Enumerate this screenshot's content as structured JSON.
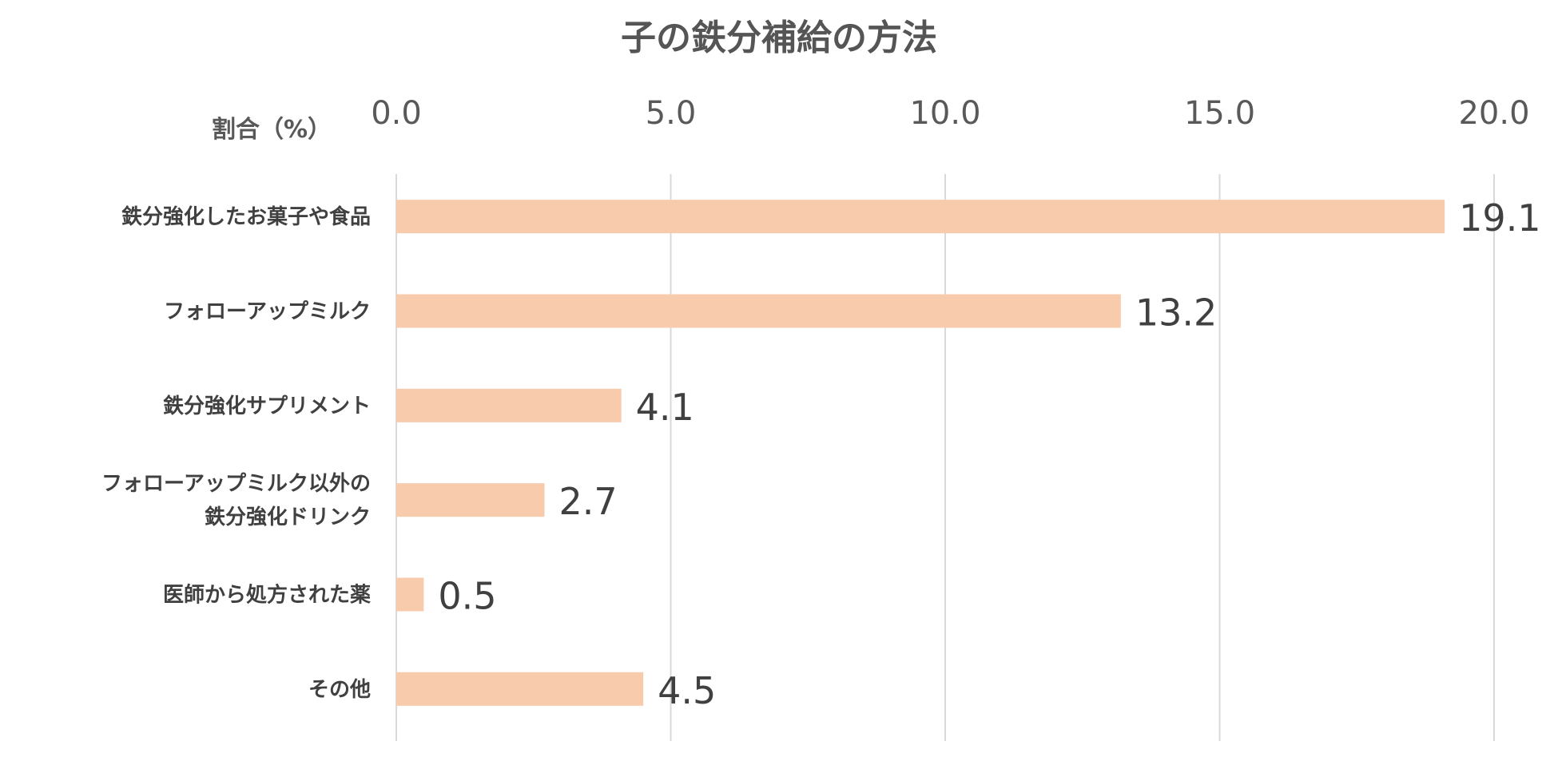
{
  "chart_data": {
    "type": "bar",
    "orientation": "horizontal",
    "title": "子の鉄分補給の方法",
    "xlabel": "割合（%）",
    "ylabel": "",
    "xlim": [
      0,
      20
    ],
    "ticks": [
      "0.0",
      "5.0",
      "10.0",
      "15.0",
      "20.0"
    ],
    "tick_values": [
      0,
      5,
      10,
      15,
      20
    ],
    "axis_position": "top",
    "grid": true,
    "bar_color": "#F8CBAD",
    "categories": [
      [
        "鉄分強化したお菓子や食品"
      ],
      [
        "フォローアップミルク"
      ],
      [
        "鉄分強化サプリメント"
      ],
      [
        "フォローアップミルク以外の",
        "鉄分強化ドリンク"
      ],
      [
        "医師から処方された薬"
      ],
      [
        "その他"
      ]
    ],
    "values": [
      19.1,
      13.2,
      4.1,
      2.7,
      0.5,
      4.5
    ],
    "value_labels": [
      "19.1",
      "13.2",
      "4.1",
      "2.7",
      "0.5",
      "4.5"
    ]
  }
}
